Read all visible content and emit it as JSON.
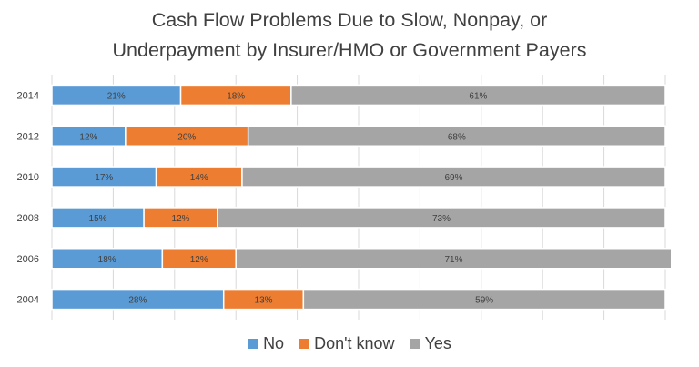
{
  "title_lines": [
    "Cash Flow Problems Due to Slow, Nonpay, or",
    "Underpayment by Insurer/HMO or Government Payers"
  ],
  "chart_data": {
    "type": "bar",
    "orientation": "horizontal",
    "stacked": "100%",
    "categories": [
      "2014",
      "2012",
      "2010",
      "2008",
      "2006",
      "2004"
    ],
    "series": [
      {
        "name": "No",
        "color": "#5B9BD5",
        "values": [
          21,
          12,
          17,
          15,
          18,
          28
        ]
      },
      {
        "name": "Don't know",
        "color": "#ED7D31",
        "values": [
          18,
          20,
          14,
          12,
          12,
          13
        ]
      },
      {
        "name": "Yes",
        "color": "#A5A5A5",
        "values": [
          61,
          68,
          69,
          73,
          71,
          59
        ]
      }
    ],
    "data_label_suffix": "%",
    "xlim": [
      0,
      100
    ],
    "grid": "vertical",
    "legend_position": "bottom"
  }
}
